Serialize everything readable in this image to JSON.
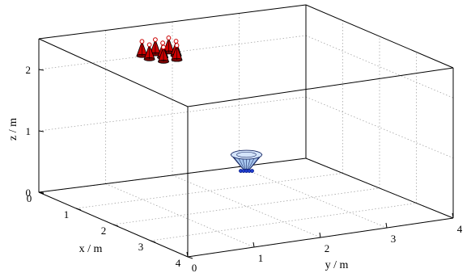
{
  "chart_data": {
    "type": "scatter",
    "projection": "3d-perspective",
    "title": "",
    "xlabel": "x / m",
    "ylabel": "y / m",
    "zlabel": "z / m",
    "xlim": [
      0,
      4
    ],
    "ylim": [
      0,
      4
    ],
    "zlim": [
      0,
      2.5
    ],
    "xticks": [
      "0",
      "1",
      "2",
      "3",
      "4"
    ],
    "yticks": [
      "0",
      "1",
      "2",
      "3",
      "4"
    ],
    "zticks": [
      "0",
      "1",
      "2"
    ],
    "grid": true,
    "box": true,
    "series": [
      {
        "marker": "cone-up",
        "color": "#cc0000",
        "points": [
          {
            "x": 0.8,
            "y": 1.1,
            "z": 2.35
          },
          {
            "x": 0.8,
            "y": 1.3,
            "z": 2.35
          },
          {
            "x": 0.8,
            "y": 1.5,
            "z": 2.35
          },
          {
            "x": 1.0,
            "y": 1.1,
            "z": 2.35
          },
          {
            "x": 1.0,
            "y": 1.3,
            "z": 2.35
          },
          {
            "x": 1.0,
            "y": 1.5,
            "z": 2.35
          },
          {
            "x": 1.2,
            "y": 1.2,
            "z": 2.35
          },
          {
            "x": 1.2,
            "y": 1.4,
            "z": 2.35
          }
        ]
      },
      {
        "marker": "cone-down-cluster",
        "color": "#a8c8f0",
        "points": [
          {
            "x": 2.0,
            "y": 2.0,
            "z": 0.85
          }
        ]
      }
    ]
  }
}
